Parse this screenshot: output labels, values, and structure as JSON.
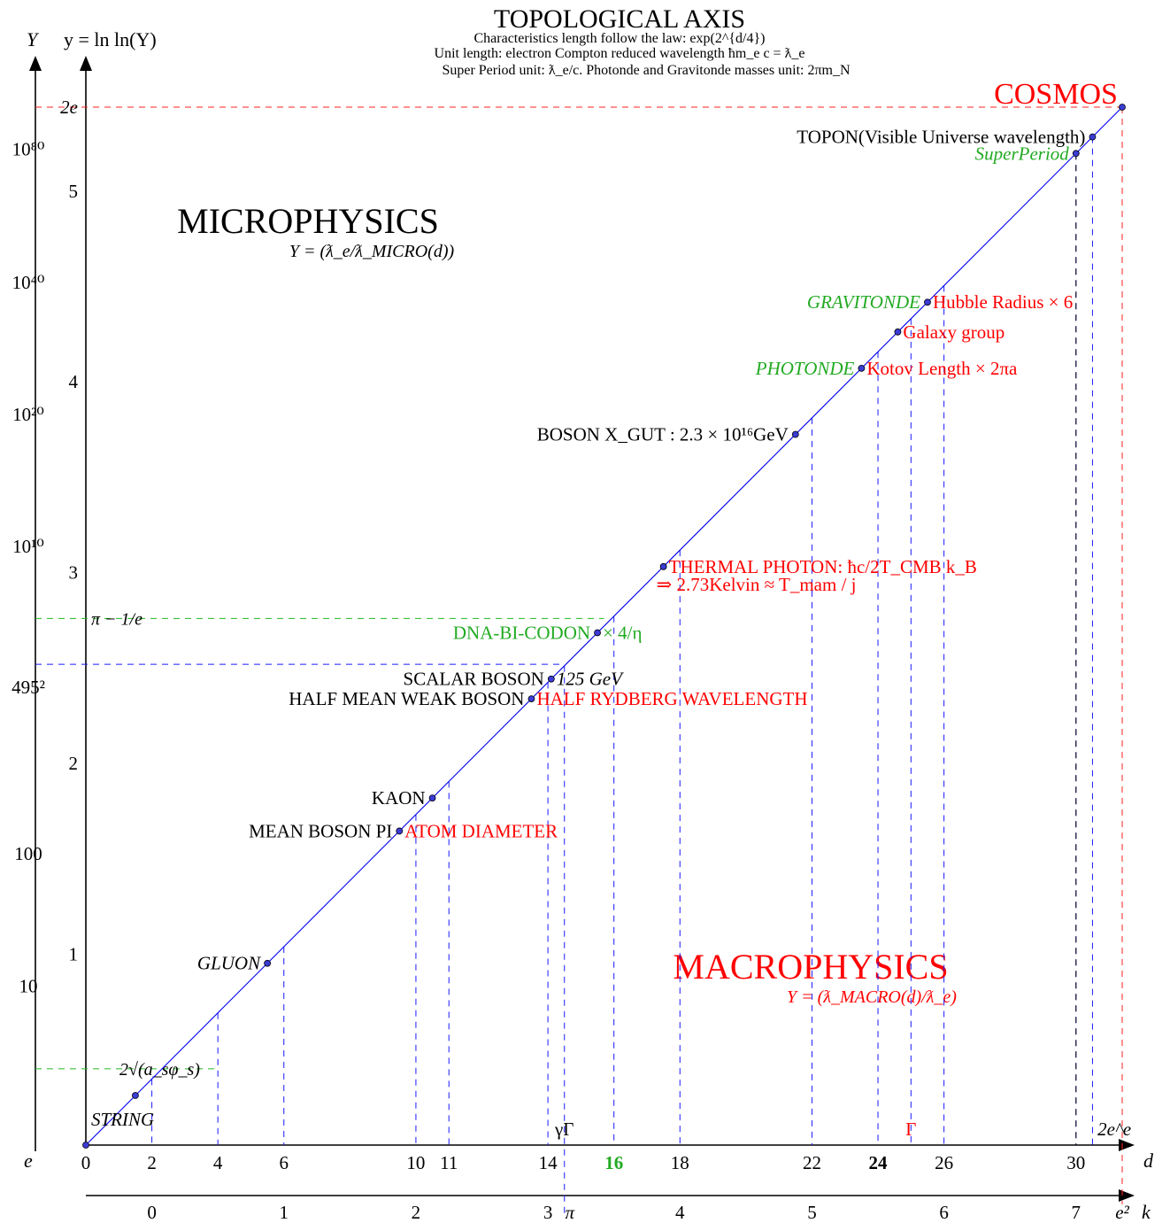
{
  "title": {
    "main": "TOPOLOGICAL AXIS",
    "line1": "Characteristics length follow the law: exp(2^{d/4})",
    "line2": "Unit length: electron Compton reduced wavelength ħm_e c = ƛ_e",
    "line3": "Super Period unit: ƛ_e/c. Photonde and Gravitonde masses unit: 2πm_N"
  },
  "regions": {
    "micro": {
      "label": "MICROPHYSICS",
      "formula": "Y = (ƛ_e/ƛ_MICRO(d))"
    },
    "macro": {
      "label": "MACROPHYSICS",
      "formula": "Y = (ƛ_MACRO(d)/ƛ_e)"
    },
    "cosmos": "COSMOS"
  },
  "axes": {
    "Y_label": "Y",
    "y_label": "y = ln ln(Y)",
    "Y_origin": "e",
    "d_label": "d",
    "k_label": "k"
  },
  "colors": {
    "line": "#0000ee",
    "guide_blue": "#1a1aff",
    "guide_green": "#22bb22",
    "red": "#ff0000",
    "green": "#22aa22",
    "black": "#000000"
  },
  "chart_data": {
    "type": "line",
    "title": "TOPOLOGICAL AXIS",
    "xlabel": "d",
    "ylabel": "y = ln ln(Y)",
    "xlim": [
      0,
      31.4
    ],
    "ylim": [
      0,
      5.44
    ],
    "grid": false,
    "series": [
      {
        "values_x": [
          0,
          31.4
        ],
        "values_y": [
          0,
          5.44
        ]
      }
    ],
    "d_ticks": [
      {
        "value": 0,
        "label": "0"
      },
      {
        "value": 2,
        "label": "2"
      },
      {
        "value": 4,
        "label": "4"
      },
      {
        "value": 6,
        "label": "6"
      },
      {
        "value": 10,
        "label": "10"
      },
      {
        "value": 11,
        "label": "11"
      },
      {
        "value": 14,
        "label": "14"
      },
      {
        "value": 16,
        "label": "16",
        "bold": true,
        "color": "#22aa22"
      },
      {
        "value": 18,
        "label": "18"
      },
      {
        "value": 22,
        "label": "22"
      },
      {
        "value": 24,
        "label": "24",
        "bold": true
      },
      {
        "value": 26,
        "label": "26"
      },
      {
        "value": 30,
        "label": "30"
      }
    ],
    "k_ticks": [
      {
        "value": 2,
        "label": "0"
      },
      {
        "value": 6,
        "label": "1"
      },
      {
        "value": 10,
        "label": "2"
      },
      {
        "value": 14,
        "label": "3"
      },
      {
        "value": 14.5,
        "label": "π"
      },
      {
        "value": 18,
        "label": "4"
      },
      {
        "value": 22,
        "label": "5"
      },
      {
        "value": 26,
        "label": "6"
      },
      {
        "value": 30,
        "label": "7"
      },
      {
        "value": 31.4,
        "label": "e²"
      }
    ],
    "y_ticks": [
      {
        "value": 1,
        "label": "1"
      },
      {
        "value": 2,
        "label": "2"
      },
      {
        "value": 3,
        "label": "3"
      },
      {
        "value": 4,
        "label": "4"
      },
      {
        "value": 5,
        "label": "5"
      },
      {
        "value": 5.44,
        "label": "2e"
      }
    ],
    "Y_ticks": [
      {
        "value": 0.834,
        "label": "10"
      },
      {
        "value": 1.527,
        "label": "100"
      },
      {
        "value": 2.4,
        "label": "495²"
      },
      {
        "value": 3.137,
        "label": "10¹⁰"
      },
      {
        "value": 3.83,
        "label": "10²⁰"
      },
      {
        "value": 4.52,
        "label": "10⁴⁰"
      },
      {
        "value": 5.22,
        "label": "10⁸⁰"
      }
    ],
    "h_guides": [
      {
        "y": 0.4,
        "color": "green",
        "label": "2√(a_sφ_s)",
        "x_end": 4
      },
      {
        "y": 2.76,
        "color": "green",
        "label": "π − 1/e",
        "x_end": 15.7
      },
      {
        "y": 2.52,
        "color": "blue",
        "x_end": 14.5
      },
      {
        "y": 5.44,
        "color": "red",
        "x_end": 31.4
      }
    ],
    "points": [
      {
        "d": 0,
        "label": ""
      },
      {
        "d": 1.5,
        "label": "STRING",
        "color": "#000000",
        "italic": true,
        "side": "below"
      },
      {
        "d": 4,
        "label": "2√(a_sφ_s)",
        "noDot": true
      },
      {
        "d": 5.5,
        "label": "GLUON",
        "color": "#000000",
        "italic": true,
        "side": "left"
      },
      {
        "d": 9.5,
        "label": "MEAN BOSON PI",
        "color": "#000000",
        "side": "left",
        "label2": "ATOM DIAMETER",
        "color2": "#ff0000"
      },
      {
        "d": 10.5,
        "label": "KAON",
        "color": "#000000",
        "side": "left"
      },
      {
        "d": 13.5,
        "label": "HALF MEAN WEAK BOSON",
        "color": "#000000",
        "side": "left",
        "label2": "HALF RYDBERG WAVELENGTH",
        "color2": "#ff0000"
      },
      {
        "d": 14.1,
        "label": "SCALAR BOSON",
        "color": "#000000",
        "side": "left",
        "label2": "125 GeV",
        "color2": "#000000"
      },
      {
        "d": 15.5,
        "label": "DNA-BI-CODON",
        "color": "#22aa22",
        "side": "left",
        "label2": "× 4/η",
        "color2": "#22aa22"
      },
      {
        "d": 17.5,
        "label": "",
        "label2": "THERMAL PHOTON: ħc/2T_CMB k_B",
        "color2": "#ff0000",
        "label3": "⇒ 2.73Kelvin ≈ T_mam / j"
      },
      {
        "d": 21.5,
        "label": "BOSON X_GUT : 2.3 × 10¹⁶GeV",
        "color": "#000000",
        "side": "left"
      },
      {
        "d": 23.5,
        "label": "PHOTONDE",
        "color": "#22aa22",
        "italic": true,
        "side": "left",
        "label2": "Kotov Length × 2πa",
        "color2": "#ff0000"
      },
      {
        "d": 24.6,
        "label": "",
        "label2": "Galaxy group",
        "color2": "#ff0000"
      },
      {
        "d": 25.5,
        "label": "GRAVITONDE",
        "color": "#22aa22",
        "italic": true,
        "side": "left",
        "label2": "Hubble Radius × 6",
        "color2": "#ff0000"
      },
      {
        "d": 30,
        "label": "SuperPeriod",
        "color": "#22aa22",
        "italic": true,
        "side": "left"
      },
      {
        "d": 30.5,
        "label": "TOPON(Visible Universe wavelength)",
        "color": "#000000",
        "side": "left"
      },
      {
        "d": 31.4,
        "label": ""
      }
    ],
    "axis_notes": [
      {
        "d": 14.5,
        "text": "γΓ",
        "color": "#000000"
      },
      {
        "d": 25,
        "text": "Γ",
        "color": "#ff0000"
      },
      {
        "d": 31.0,
        "text": "2e^e",
        "color": "#000000"
      }
    ]
  }
}
